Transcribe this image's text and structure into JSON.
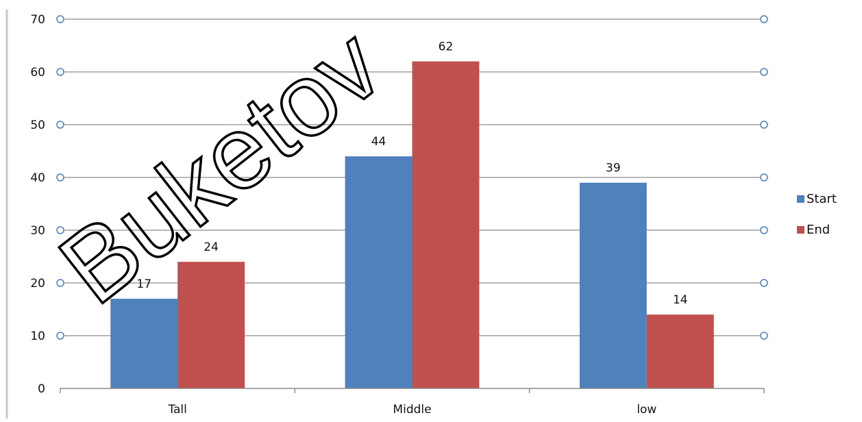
{
  "chart_data": {
    "type": "bar",
    "categories": [
      "Tall",
      "Middle",
      "low"
    ],
    "series": [
      {
        "name": "Start",
        "values": [
          17,
          44,
          39
        ],
        "color": "#4F81BD"
      },
      {
        "name": "End",
        "values": [
          24,
          62,
          14
        ],
        "color": "#C0504D"
      }
    ],
    "title": "",
    "xlabel": "",
    "ylabel": "",
    "ylim": [
      0,
      70
    ],
    "yticks": [
      0,
      10,
      20,
      30,
      40,
      50,
      60,
      70
    ],
    "grid": true,
    "legend_position": "right",
    "data_labels": true
  },
  "watermark": {
    "text": "Buketov"
  }
}
